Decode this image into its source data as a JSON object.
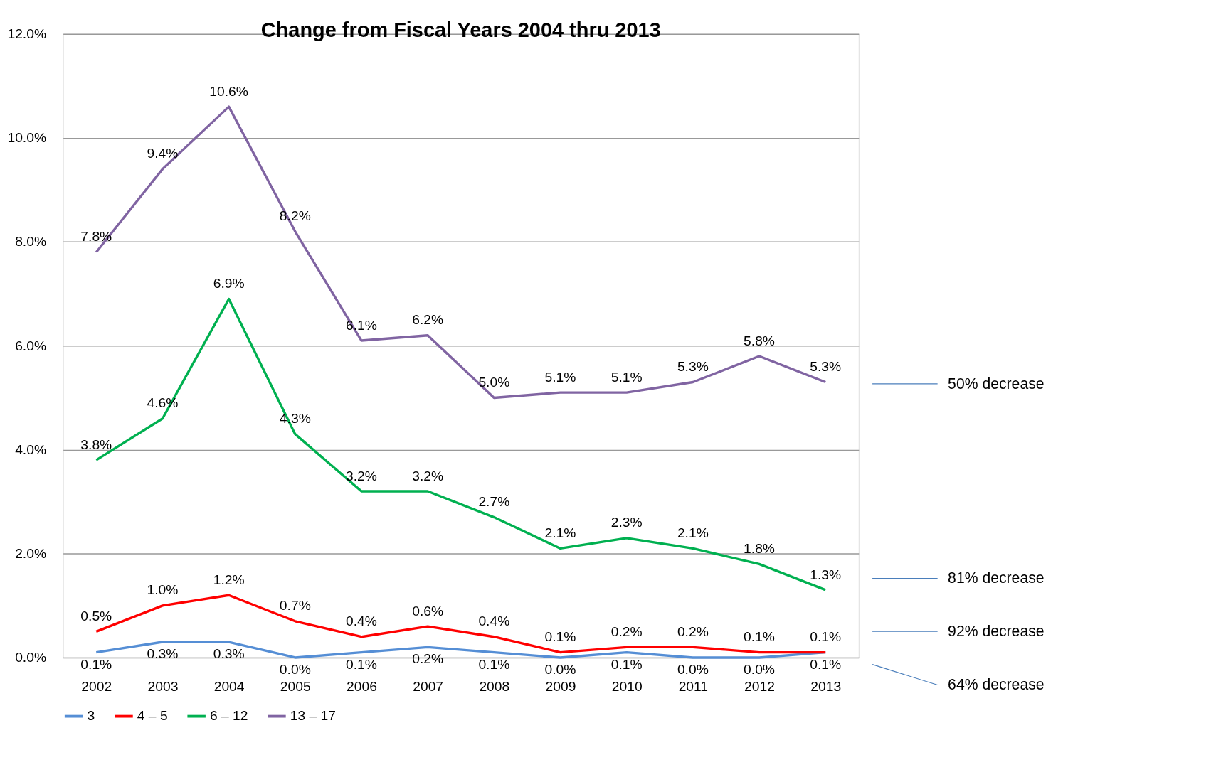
{
  "chart_data": {
    "type": "line",
    "title": "Change from Fiscal Years 2004 thru 2013",
    "categories": [
      "2002",
      "2003",
      "2004",
      "2005",
      "2006",
      "2007",
      "2008",
      "2009",
      "2010",
      "2011",
      "2012",
      "2013"
    ],
    "series": [
      {
        "name": "3",
        "color": "#558ed5",
        "values": [
          0.1,
          0.3,
          0.3,
          0.0,
          0.1,
          0.2,
          0.1,
          0.0,
          0.1,
          0.0,
          0.0,
          0.1
        ],
        "value_labels": [
          "0.1%",
          "0.3%",
          "0.3%",
          "0.0%",
          "0.1%",
          "0.2%",
          "0.1%",
          "0.0%",
          "0.1%",
          "0.0%",
          "0.0%",
          "0.1%"
        ]
      },
      {
        "name": "4 – 5",
        "color": "#ff0000",
        "values": [
          0.5,
          1.0,
          1.2,
          0.7,
          0.4,
          0.6,
          0.4,
          0.1,
          0.2,
          0.2,
          0.1,
          0.1
        ],
        "value_labels": [
          "0.5%",
          "1.0%",
          "1.2%",
          "0.7%",
          "0.4%",
          "0.6%",
          "0.4%",
          "0.1%",
          "0.2%",
          "0.2%",
          "0.1%",
          "0.1%"
        ]
      },
      {
        "name": "6 – 12",
        "color": "#00b050",
        "values": [
          3.8,
          4.6,
          6.9,
          4.3,
          3.2,
          3.2,
          2.7,
          2.1,
          2.3,
          2.1,
          1.8,
          1.3
        ],
        "value_labels": [
          "3.8%",
          "4.6%",
          "6.9%",
          "4.3%",
          "3.2%",
          "3.2%",
          "2.7%",
          "2.1%",
          "2.3%",
          "2.1%",
          "1.8%",
          "1.3%"
        ]
      },
      {
        "name": "13 – 17",
        "color": "#8064a2",
        "values": [
          7.8,
          9.4,
          10.6,
          8.2,
          6.1,
          6.2,
          5.0,
          5.1,
          5.1,
          5.3,
          5.8,
          5.3
        ],
        "value_labels": [
          "7.8%",
          "9.4%",
          "10.6%",
          "8.2%",
          "6.1%",
          "6.2%",
          "5.0%",
          "5.1%",
          "5.1%",
          "5.3%",
          "5.8%",
          "5.3%"
        ]
      }
    ],
    "ylim": [
      0,
      12
    ],
    "yticks": [
      {
        "value": 0,
        "label": "0.0%"
      },
      {
        "value": 2,
        "label": "2.0%"
      },
      {
        "value": 4,
        "label": "4.0%"
      },
      {
        "value": 6,
        "label": "6.0%"
      },
      {
        "value": 8,
        "label": "8.0%"
      },
      {
        "value": 10,
        "label": "10.0%"
      },
      {
        "value": 12,
        "label": "12.0%"
      }
    ],
    "grid": "y",
    "legend": "bottom",
    "marker": "none",
    "line_style": "solid",
    "annotations": [
      "50% decrease",
      "81% decrease",
      "92% decrease",
      "64% decrease"
    ]
  }
}
